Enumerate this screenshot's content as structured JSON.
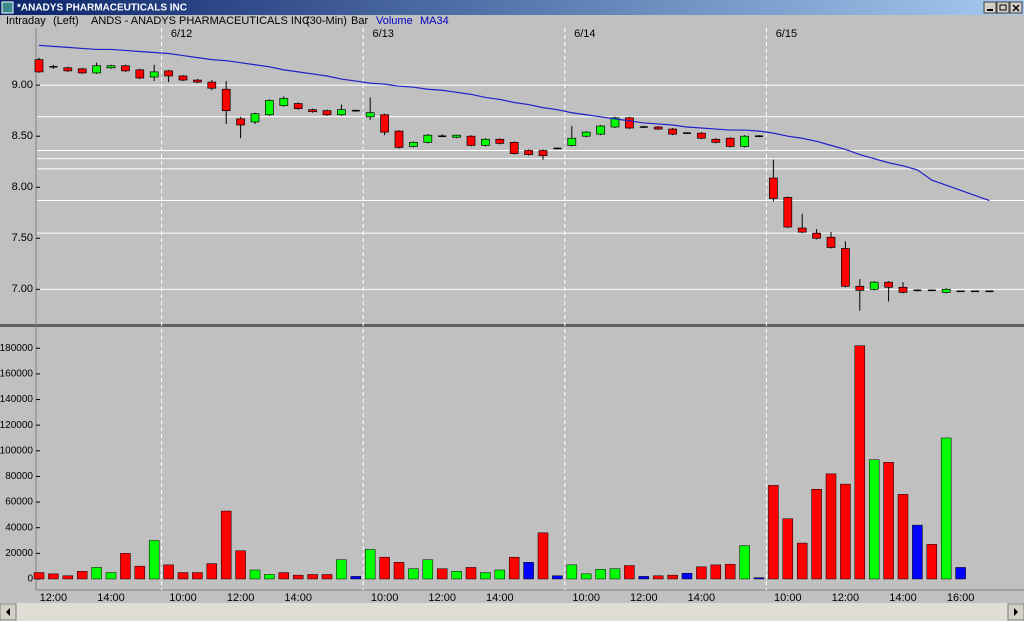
{
  "window": {
    "title": "*ANADYS PHARMACEUTICALS INC"
  },
  "chart_data": [
    {
      "type": "candlestick",
      "header": {
        "mode": "Intraday",
        "scale": "(Left)",
        "symbol": "ANDS - ANADYS PHARMACEUTICALS INC",
        "interval": "(30-Min)",
        "style": "Bar"
      },
      "day_labels": [
        "6/12",
        "6/13",
        "6/14",
        "6/15"
      ],
      "day_starts": [
        9,
        23,
        37,
        51
      ],
      "open": [
        9.25,
        9.18,
        9.17,
        9.16,
        9.12,
        9.17,
        9.19,
        9.15,
        9.08,
        9.14,
        9.09,
        9.05,
        9.03,
        8.96,
        8.67,
        8.64,
        8.71,
        8.8,
        8.82,
        8.76,
        8.75,
        8.71,
        8.75,
        8.69,
        8.71,
        8.55,
        8.4,
        8.44,
        8.5,
        8.49,
        8.5,
        8.41,
        8.47,
        8.44,
        8.36,
        8.36,
        8.38,
        8.41,
        8.5,
        8.52,
        8.59,
        8.68,
        8.59,
        8.59,
        8.57,
        8.53,
        8.53,
        8.47,
        8.48,
        8.4,
        8.5,
        8.09,
        7.9,
        7.6,
        7.55,
        7.51,
        7.4,
        7.03,
        7.0,
        7.07,
        7.02,
        6.99,
        6.99,
        6.97,
        6.98,
        6.98,
        6.98
      ],
      "high": [
        9.27,
        9.2,
        9.18,
        9.17,
        9.22,
        9.2,
        9.2,
        9.16,
        9.2,
        9.15,
        9.1,
        9.06,
        9.05,
        9.04,
        8.69,
        8.73,
        8.86,
        8.89,
        8.83,
        8.77,
        8.76,
        8.81,
        8.76,
        8.88,
        8.72,
        8.56,
        8.45,
        8.52,
        8.52,
        8.51,
        8.51,
        8.48,
        8.48,
        8.45,
        8.37,
        8.37,
        8.39,
        8.6,
        8.55,
        8.61,
        8.69,
        8.69,
        8.6,
        8.6,
        8.58,
        8.54,
        8.54,
        8.48,
        8.49,
        8.51,
        8.51,
        8.27,
        7.91,
        7.74,
        7.59,
        7.56,
        7.47,
        7.1,
        7.08,
        7.08,
        7.07,
        7.0,
        7.0,
        7.01,
        6.98,
        6.98,
        6.98
      ],
      "low": [
        9.12,
        9.16,
        9.13,
        9.11,
        9.11,
        9.16,
        9.13,
        9.06,
        9.04,
        9.03,
        9.04,
        9.02,
        8.95,
        8.62,
        8.48,
        8.62,
        8.7,
        8.79,
        8.76,
        8.73,
        8.7,
        8.7,
        8.74,
        8.66,
        8.51,
        8.38,
        8.39,
        8.43,
        8.49,
        8.48,
        8.4,
        8.4,
        8.42,
        8.32,
        8.31,
        8.27,
        8.37,
        8.4,
        8.49,
        8.51,
        8.58,
        8.57,
        8.58,
        8.56,
        8.51,
        8.52,
        8.47,
        8.43,
        8.39,
        8.39,
        8.49,
        7.86,
        7.6,
        7.55,
        7.49,
        7.4,
        7.02,
        6.79,
        6.99,
        6.88,
        6.96,
        6.98,
        6.98,
        6.96,
        6.98,
        6.98,
        6.98
      ],
      "close": [
        9.13,
        9.18,
        9.14,
        9.12,
        9.19,
        9.19,
        9.14,
        9.07,
        9.13,
        9.09,
        9.05,
        9.03,
        8.97,
        8.75,
        8.61,
        8.72,
        8.85,
        8.87,
        8.77,
        8.74,
        8.71,
        8.76,
        8.75,
        8.73,
        8.54,
        8.39,
        8.44,
        8.51,
        8.5,
        8.51,
        8.41,
        8.47,
        8.43,
        8.33,
        8.32,
        8.31,
        8.38,
        8.48,
        8.54,
        8.6,
        8.68,
        8.58,
        8.59,
        8.57,
        8.52,
        8.53,
        8.48,
        8.44,
        8.4,
        8.5,
        8.5,
        7.89,
        7.61,
        7.56,
        7.5,
        7.41,
        7.03,
        6.99,
        7.07,
        7.02,
        6.97,
        6.99,
        6.99,
        7.0,
        6.98,
        6.98,
        6.98
      ],
      "up_color": "#00ff00",
      "down_color": "#ff0000",
      "flat_color": "#000000",
      "series": [
        {
          "name": "MA34",
          "color": "#2020c8",
          "values": [
            9.39,
            9.38,
            9.37,
            9.36,
            9.35,
            9.35,
            9.34,
            9.33,
            9.32,
            9.31,
            9.29,
            9.27,
            9.25,
            9.24,
            9.22,
            9.2,
            9.18,
            9.15,
            9.13,
            9.11,
            9.09,
            9.06,
            9.04,
            9.02,
            9.01,
            8.99,
            8.98,
            8.96,
            8.95,
            8.93,
            8.91,
            8.88,
            8.86,
            8.83,
            8.81,
            8.78,
            8.76,
            8.73,
            8.71,
            8.69,
            8.67,
            8.65,
            8.63,
            8.62,
            8.61,
            8.59,
            8.58,
            8.57,
            8.56,
            8.56,
            8.55,
            8.53,
            8.5,
            8.48,
            8.45,
            8.41,
            8.37,
            8.32,
            8.28,
            8.24,
            8.21,
            8.17,
            8.07,
            8.02,
            7.97,
            7.92,
            7.87
          ]
        }
      ],
      "levels": [
        9.0,
        8.69,
        8.36,
        8.28,
        8.18,
        7.87,
        7.55,
        7.0
      ],
      "ylim": [
        6.67,
        9.56
      ],
      "yticks": [
        {
          "value": 7,
          "label": "7.00"
        },
        {
          "value": 7.5,
          "label": "7.50"
        },
        {
          "value": 8,
          "label": "8.00"
        },
        {
          "value": 8.5,
          "label": "8.50"
        },
        {
          "value": 9,
          "label": "9.00"
        }
      ],
      "grid": false
    },
    {
      "type": "bar",
      "categories": [
        null,
        "12:00",
        null,
        null,
        null,
        "14:00",
        null,
        null,
        null,
        null,
        "10:00",
        null,
        null,
        null,
        "12:00",
        null,
        null,
        null,
        "14:00",
        null,
        null,
        null,
        null,
        null,
        "10:00",
        null,
        null,
        null,
        "12:00",
        null,
        null,
        null,
        "14:00",
        null,
        null,
        null,
        null,
        null,
        "10:00",
        null,
        null,
        null,
        "12:00",
        null,
        null,
        null,
        "14:00",
        null,
        null,
        null,
        null,
        null,
        "10:00",
        null,
        null,
        null,
        "12:00",
        null,
        null,
        null,
        "14:00",
        null,
        null,
        null,
        "16:00",
        null,
        null
      ],
      "series": [
        {
          "name": "Volume",
          "values": [
            5000,
            4000,
            2500,
            6000,
            9000,
            5000,
            20000,
            10000,
            30000,
            11000,
            5000,
            5000,
            12000,
            53000,
            22000,
            7000,
            3500,
            5000,
            3000,
            3500,
            3500,
            15000,
            2000,
            23000,
            17000,
            13000,
            8000,
            15000,
            8000,
            6000,
            9000,
            5000,
            7000,
            17000,
            13000,
            36000,
            2500,
            11000,
            4000,
            7500,
            8000,
            10500,
            2000,
            2500,
            3000,
            4500,
            9500,
            11000,
            11500,
            26000,
            1000,
            73000,
            47000,
            28000,
            70000,
            82000,
            74000,
            182000,
            93000,
            91000,
            66000,
            42000,
            27000,
            110000,
            9000,
            null,
            null
          ],
          "colors": [
            "#ff0000",
            "#ff0000",
            "#ff0000",
            "#ff0000",
            "#00ff00",
            "#00ff00",
            "#ff0000",
            "#ff0000",
            "#00ff00",
            "#ff0000",
            "#ff0000",
            "#ff0000",
            "#ff0000",
            "#ff0000",
            "#ff0000",
            "#00ff00",
            "#00ff00",
            "#ff0000",
            "#ff0000",
            "#ff0000",
            "#ff0000",
            "#00ff00",
            "#0000ff",
            "#00ff00",
            "#ff0000",
            "#ff0000",
            "#00ff00",
            "#00ff00",
            "#ff0000",
            "#00ff00",
            "#ff0000",
            "#00ff00",
            "#00ff00",
            "#ff0000",
            "#0000ff",
            "#ff0000",
            "#0000ff",
            "#00ff00",
            "#00ff00",
            "#00ff00",
            "#00ff00",
            "#ff0000",
            "#0000ff",
            "#ff0000",
            "#ff0000",
            "#0000ff",
            "#ff0000",
            "#ff0000",
            "#ff0000",
            "#00ff00",
            "#0000ff",
            "#ff0000",
            "#ff0000",
            "#ff0000",
            "#ff0000",
            "#ff0000",
            "#ff0000",
            "#ff0000",
            "#00ff00",
            "#ff0000",
            "#ff0000",
            "#0000ff",
            "#ff0000",
            "#00ff00",
            "#0000ff",
            null,
            null
          ]
        }
      ],
      "ylim": [
        -8600,
        195800
      ],
      "yticks": [
        0,
        20000,
        40000,
        60000,
        80000,
        100000,
        120000,
        140000,
        160000,
        180000
      ]
    }
  ]
}
